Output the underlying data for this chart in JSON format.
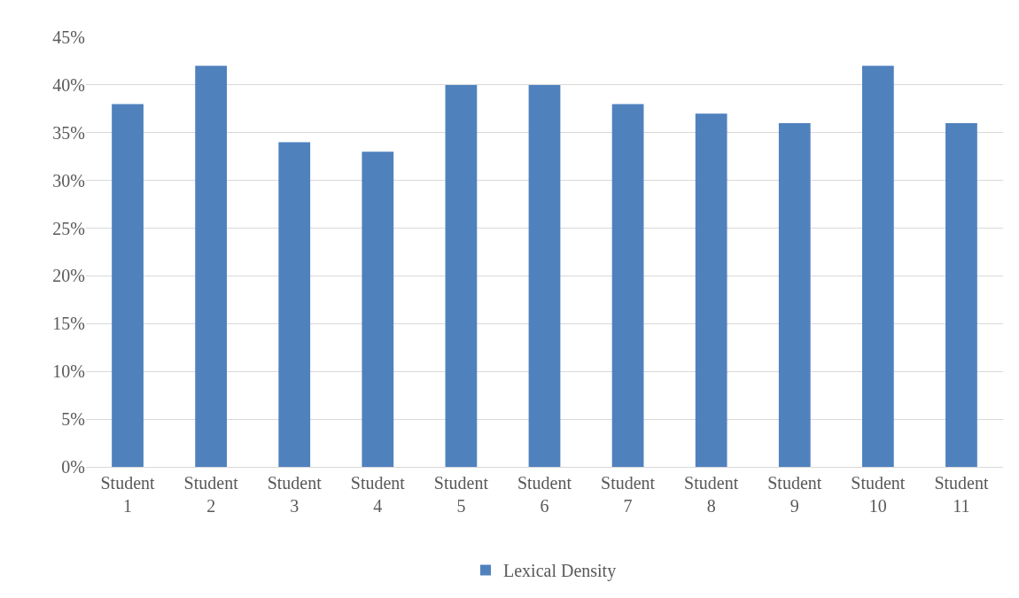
{
  "chart_data": {
    "type": "bar",
    "categories": [
      "Student 1",
      "Student 2",
      "Student 3",
      "Student 4",
      "Student 5",
      "Student 6",
      "Student 7",
      "Student 8",
      "Student 9",
      "Student 10",
      "Student 11"
    ],
    "series": [
      {
        "name": "Lexical Density",
        "color": "#4f81bd",
        "values": [
          38,
          42,
          34,
          33,
          40,
          40,
          38,
          37,
          36,
          42,
          36
        ]
      }
    ],
    "ylim": [
      0,
      45
    ],
    "yticks": [
      {
        "value": 0,
        "label": "0%"
      },
      {
        "value": 5,
        "label": "5%"
      },
      {
        "value": 10,
        "label": "10%"
      },
      {
        "value": 15,
        "label": "15%"
      },
      {
        "value": 20,
        "label": "20%"
      },
      {
        "value": 25,
        "label": "25%"
      },
      {
        "value": 30,
        "label": "30%"
      },
      {
        "value": 35,
        "label": "35%"
      },
      {
        "value": 40,
        "label": "40%"
      },
      {
        "value": 45,
        "label": "45%"
      }
    ],
    "grid": "y",
    "legend": "bottom"
  }
}
